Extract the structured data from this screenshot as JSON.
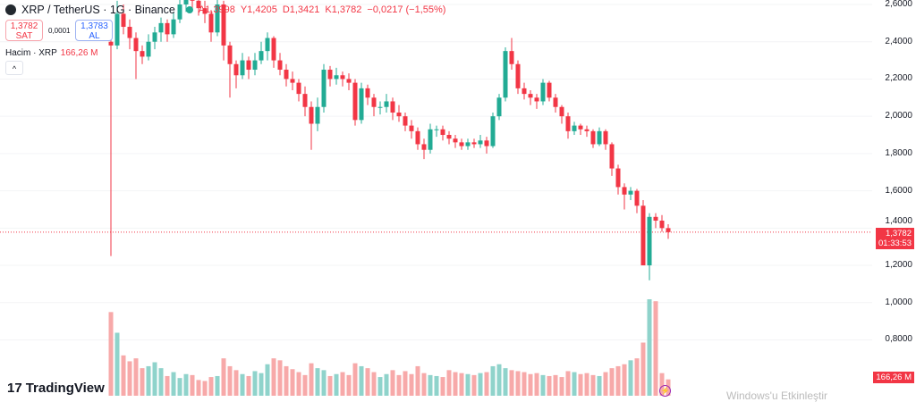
{
  "header": {
    "symbol": "XRP / TetherUS · 1G · Binance",
    "open": "A1,3998",
    "high": "Y1,4205",
    "low": "D1,3421",
    "close": "K1,3782",
    "change": "−0,0217 (−1,55%)"
  },
  "trade": {
    "sell_price": "1,3782",
    "sell_label": "SAT",
    "spread": "0,0001",
    "buy_price": "1,3783",
    "buy_label": "AL"
  },
  "volume_legend": {
    "label": "Hacim · XRP",
    "value": "166,26 M"
  },
  "price_tag": {
    "price": "1,3782",
    "countdown": "01:33:53"
  },
  "volume_tag": "166,26 M",
  "brand": "TradingView",
  "watermark": "Windows'u Etkinleştir",
  "colors": {
    "up": "#22ab94",
    "down": "#f23645",
    "vol_up": "#8fd3cb",
    "vol_down": "#f7a9a9"
  },
  "chart_data": {
    "type": "candlestick",
    "yaxis_ticks": [
      "2,6000",
      "2,4000",
      "2,2000",
      "2,0000",
      "1,8000",
      "1,6000",
      "1,4000",
      "1,2000",
      "1,0000",
      "0,8000"
    ],
    "ylim": [
      0.66,
      2.62
    ],
    "last_price": 1.3782,
    "ohlc": [
      [
        2.4,
        2.42,
        1.25,
        2.38
      ],
      [
        2.38,
        2.62,
        2.36,
        2.55
      ],
      [
        2.55,
        2.6,
        2.44,
        2.48
      ],
      [
        2.48,
        2.52,
        2.36,
        2.42
      ],
      [
        2.42,
        2.45,
        2.2,
        2.35
      ],
      [
        2.35,
        2.38,
        2.28,
        2.32
      ],
      [
        2.32,
        2.44,
        2.3,
        2.4
      ],
      [
        2.4,
        2.48,
        2.36,
        2.45
      ],
      [
        2.45,
        2.53,
        2.4,
        2.5
      ],
      [
        2.5,
        2.52,
        2.4,
        2.44
      ],
      [
        2.44,
        2.56,
        2.42,
        2.52
      ],
      [
        2.52,
        2.63,
        2.5,
        2.6
      ],
      [
        2.6,
        2.66,
        2.56,
        2.65
      ],
      [
        2.65,
        2.68,
        2.58,
        2.62
      ],
      [
        2.62,
        2.64,
        2.54,
        2.58
      ],
      [
        2.58,
        2.62,
        2.5,
        2.55
      ],
      [
        2.55,
        2.57,
        2.4,
        2.45
      ],
      [
        2.45,
        2.64,
        2.43,
        2.6
      ],
      [
        2.6,
        2.62,
        2.3,
        2.38
      ],
      [
        2.38,
        2.4,
        2.1,
        2.28
      ],
      [
        2.28,
        2.3,
        2.15,
        2.22
      ],
      [
        2.22,
        2.34,
        2.2,
        2.3
      ],
      [
        2.3,
        2.32,
        2.2,
        2.25
      ],
      [
        2.25,
        2.34,
        2.22,
        2.3
      ],
      [
        2.3,
        2.4,
        2.28,
        2.35
      ],
      [
        2.35,
        2.45,
        2.3,
        2.42
      ],
      [
        2.42,
        2.43,
        2.26,
        2.3
      ],
      [
        2.3,
        2.34,
        2.22,
        2.25
      ],
      [
        2.25,
        2.28,
        2.16,
        2.2
      ],
      [
        2.2,
        2.24,
        2.14,
        2.18
      ],
      [
        2.18,
        2.2,
        2.08,
        2.12
      ],
      [
        2.12,
        2.16,
        2.0,
        2.05
      ],
      [
        2.05,
        2.08,
        1.82,
        1.96
      ],
      [
        1.96,
        2.1,
        1.92,
        2.05
      ],
      [
        2.05,
        2.28,
        2.02,
        2.25
      ],
      [
        2.25,
        2.27,
        2.16,
        2.2
      ],
      [
        2.2,
        2.26,
        2.17,
        2.22
      ],
      [
        2.22,
        2.24,
        2.16,
        2.2
      ],
      [
        2.2,
        2.23,
        2.14,
        2.18
      ],
      [
        2.18,
        2.2,
        1.95,
        1.98
      ],
      [
        1.98,
        2.18,
        1.96,
        2.15
      ],
      [
        2.15,
        2.17,
        2.06,
        2.1
      ],
      [
        2.1,
        2.12,
        2.0,
        2.05
      ],
      [
        2.05,
        2.08,
        2.01,
        2.05
      ],
      [
        2.05,
        2.12,
        2.02,
        2.08
      ],
      [
        2.08,
        2.1,
        1.98,
        2.02
      ],
      [
        2.02,
        2.06,
        1.97,
        2.0
      ],
      [
        2.0,
        2.02,
        1.92,
        1.95
      ],
      [
        1.95,
        1.98,
        1.88,
        1.92
      ],
      [
        1.92,
        1.94,
        1.82,
        1.85
      ],
      [
        1.85,
        1.88,
        1.77,
        1.82
      ],
      [
        1.82,
        1.96,
        1.8,
        1.93
      ],
      [
        1.93,
        1.95,
        1.89,
        1.93
      ],
      [
        1.93,
        1.95,
        1.87,
        1.9
      ],
      [
        1.9,
        1.92,
        1.85,
        1.88
      ],
      [
        1.88,
        1.9,
        1.83,
        1.86
      ],
      [
        1.86,
        1.88,
        1.82,
        1.84
      ],
      [
        1.84,
        1.88,
        1.82,
        1.86
      ],
      [
        1.86,
        1.88,
        1.83,
        1.85
      ],
      [
        1.85,
        1.9,
        1.83,
        1.87
      ],
      [
        1.87,
        1.89,
        1.8,
        1.84
      ],
      [
        1.84,
        2.02,
        1.83,
        2.0
      ],
      [
        2.0,
        2.12,
        1.98,
        2.1
      ],
      [
        2.1,
        2.37,
        2.08,
        2.35
      ],
      [
        2.35,
        2.42,
        2.25,
        2.28
      ],
      [
        2.28,
        2.3,
        2.12,
        2.15
      ],
      [
        2.15,
        2.18,
        2.09,
        2.12
      ],
      [
        2.12,
        2.14,
        2.06,
        2.1
      ],
      [
        2.1,
        2.12,
        2.04,
        2.08
      ],
      [
        2.08,
        2.2,
        2.06,
        2.18
      ],
      [
        2.18,
        2.19,
        2.08,
        2.1
      ],
      [
        2.1,
        2.12,
        2.02,
        2.05
      ],
      [
        2.05,
        2.06,
        1.96,
        2.0
      ],
      [
        2.0,
        2.02,
        1.88,
        1.92
      ],
      [
        1.92,
        1.97,
        1.9,
        1.95
      ],
      [
        1.95,
        1.96,
        1.9,
        1.93
      ],
      [
        1.93,
        1.95,
        1.89,
        1.92
      ],
      [
        1.92,
        1.93,
        1.83,
        1.85
      ],
      [
        1.85,
        1.94,
        1.84,
        1.92
      ],
      [
        1.92,
        1.93,
        1.82,
        1.85
      ],
      [
        1.85,
        1.86,
        1.68,
        1.72
      ],
      [
        1.72,
        1.74,
        1.58,
        1.62
      ],
      [
        1.62,
        1.64,
        1.5,
        1.58
      ],
      [
        1.58,
        1.62,
        1.55,
        1.6
      ],
      [
        1.6,
        1.61,
        1.48,
        1.52
      ],
      [
        1.52,
        1.55,
        1.2,
        1.2
      ],
      [
        1.2,
        1.48,
        1.12,
        1.46
      ],
      [
        1.46,
        1.48,
        1.4,
        1.44
      ],
      [
        1.44,
        1.47,
        1.38,
        1.4
      ],
      [
        1.3998,
        1.4205,
        1.3421,
        1.3782
      ]
    ],
    "volume_millions": [
      850,
      640,
      410,
      350,
      380,
      280,
      300,
      340,
      280,
      200,
      240,
      180,
      220,
      210,
      160,
      150,
      190,
      200,
      380,
      300,
      260,
      220,
      200,
      250,
      230,
      320,
      380,
      360,
      300,
      270,
      240,
      210,
      330,
      280,
      260,
      200,
      220,
      240,
      210,
      330,
      300,
      280,
      240,
      190,
      220,
      260,
      210,
      250,
      220,
      300,
      230,
      210,
      200,
      190,
      260,
      240,
      230,
      220,
      210,
      230,
      240,
      300,
      320,
      280,
      260,
      250,
      240,
      220,
      230,
      210,
      200,
      210,
      190,
      250,
      240,
      220,
      230,
      210,
      200,
      240,
      280,
      300,
      320,
      360,
      380,
      540,
      980,
      960,
      230,
      166.26
    ]
  }
}
